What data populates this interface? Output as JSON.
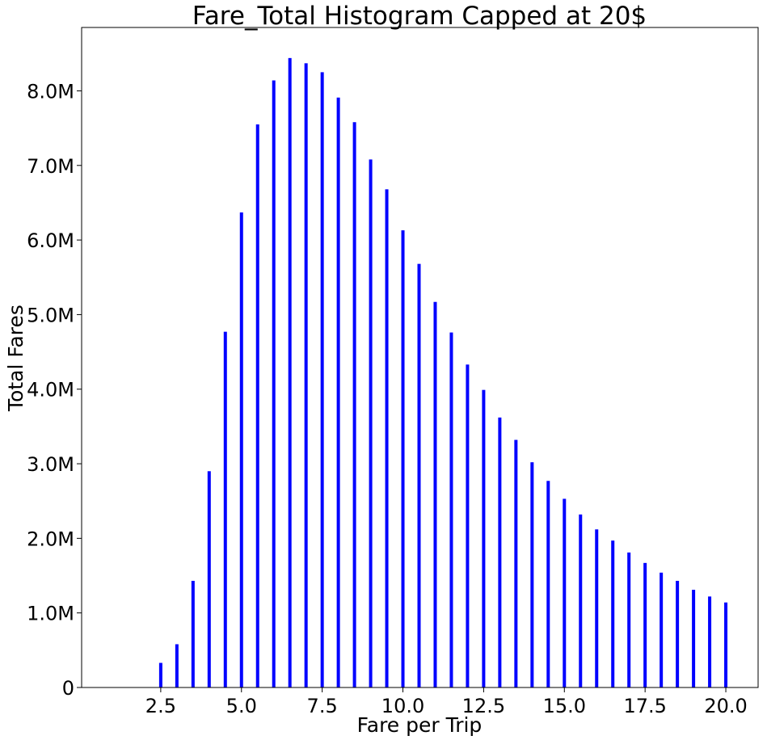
{
  "chart_data": {
    "type": "bar",
    "title": "Fare_Total Histogram Capped at 20$",
    "xlabel": "Fare per Trip",
    "ylabel": "Total Fares",
    "xlim": [
      0.05,
      21.0
    ],
    "ylim": [
      0,
      8.85
    ],
    "y_unit": "M",
    "x_ticks": [
      {
        "value": 2.5,
        "label": "2.5"
      },
      {
        "value": 5.0,
        "label": "5.0"
      },
      {
        "value": 7.5,
        "label": "7.5"
      },
      {
        "value": 10.0,
        "label": "10.0"
      },
      {
        "value": 12.5,
        "label": "12.5"
      },
      {
        "value": 15.0,
        "label": "15.0"
      },
      {
        "value": 17.5,
        "label": "17.5"
      },
      {
        "value": 20.0,
        "label": "20.0"
      }
    ],
    "y_ticks": [
      {
        "value": 0,
        "label": "0"
      },
      {
        "value": 1,
        "label": "1.0M"
      },
      {
        "value": 2,
        "label": "2.0M"
      },
      {
        "value": 3,
        "label": "3.0M"
      },
      {
        "value": 4,
        "label": "4.0M"
      },
      {
        "value": 5,
        "label": "5.0M"
      },
      {
        "value": 6,
        "label": "6.0M"
      },
      {
        "value": 7,
        "label": "7.0M"
      },
      {
        "value": 8,
        "label": "8.0M"
      }
    ],
    "grid": false,
    "legend": "none",
    "bar_color": "#0000ff",
    "bar_width": 0.1,
    "x": [
      2.5,
      3.0,
      3.5,
      4.0,
      4.5,
      5.0,
      5.5,
      6.0,
      6.5,
      7.0,
      7.5,
      8.0,
      8.5,
      9.0,
      9.5,
      10.0,
      10.5,
      11.0,
      11.5,
      12.0,
      12.5,
      13.0,
      13.5,
      14.0,
      14.5,
      15.0,
      15.5,
      16.0,
      16.5,
      17.0,
      17.5,
      18.0,
      18.5,
      19.0,
      19.5,
      20.0
    ],
    "values": [
      0.33,
      0.58,
      1.43,
      2.9,
      4.77,
      6.37,
      7.55,
      8.14,
      8.44,
      8.37,
      8.25,
      7.91,
      7.58,
      7.08,
      6.68,
      6.13,
      5.68,
      5.17,
      4.76,
      4.33,
      3.99,
      3.62,
      3.32,
      3.02,
      2.77,
      2.53,
      2.32,
      2.12,
      1.97,
      1.81,
      1.67,
      1.54,
      1.43,
      1.31,
      1.22,
      1.14
    ]
  }
}
